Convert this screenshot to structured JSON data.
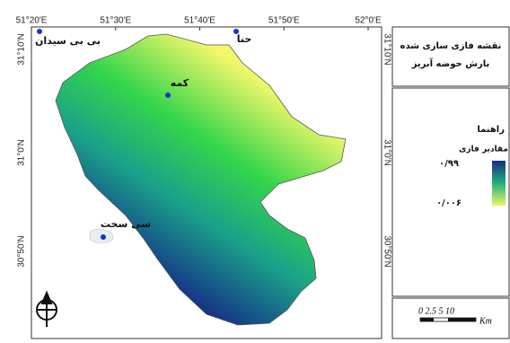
{
  "map": {
    "longitude_labels": [
      "51°20'E",
      "51°30'E",
      "51°40'E",
      "51°50'E",
      "52°0'E"
    ],
    "latitude_labels": [
      "31°10'N",
      "31°0'N",
      "30°50'N"
    ],
    "places": [
      "بی بی سیدان",
      "حنا",
      "کمه",
      "سی سخت"
    ]
  },
  "legend": {
    "title": [
      "نقشه فازی سازی شده",
      "بارش حوضه آبریز"
    ],
    "heading": "راهنما",
    "label": "مقادیر فازی",
    "high": "۰/۹۹",
    "low": "۰/۰۰۶",
    "scale_numbers": "0 2.5 5 10",
    "scale_unit": "Km"
  }
}
